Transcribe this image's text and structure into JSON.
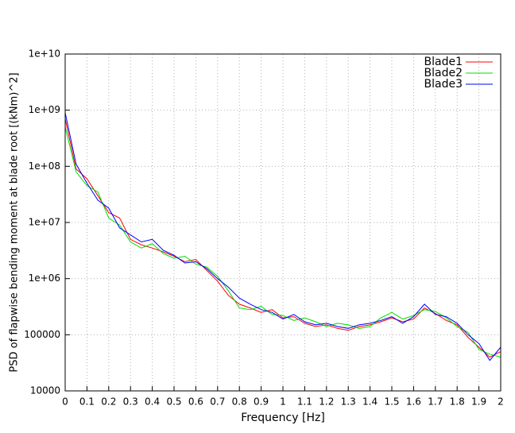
{
  "chart_data": {
    "type": "line",
    "xlabel": "Frequency [Hz]",
    "ylabel": "PSD of flapwise bending moment at blade root [(kNm)^2]",
    "x": [
      0,
      0.05,
      0.1,
      0.15,
      0.2,
      0.25,
      0.3,
      0.35,
      0.4,
      0.45,
      0.5,
      0.55,
      0.6,
      0.65,
      0.7,
      0.75,
      0.8,
      0.85,
      0.9,
      0.95,
      1,
      1.05,
      1.1,
      1.15,
      1.2,
      1.25,
      1.3,
      1.35,
      1.4,
      1.45,
      1.5,
      1.55,
      1.6,
      1.65,
      1.7,
      1.75,
      1.8,
      1.85,
      1.9,
      1.95,
      2
    ],
    "series": [
      {
        "name": "Blade1",
        "color": "#ff0000",
        "values": [
          700000000,
          90000000,
          60000000,
          30000000,
          15000000,
          12000000,
          5000000,
          4000000,
          3500000,
          3000000,
          2500000,
          2000000,
          2200000,
          1400000,
          900000,
          500000,
          350000,
          300000,
          250000,
          280000,
          200000,
          210000,
          160000,
          140000,
          150000,
          130000,
          120000,
          140000,
          150000,
          170000,
          200000,
          170000,
          190000,
          300000,
          240000,
          180000,
          150000,
          90000,
          60000,
          40000,
          50000
        ]
      },
      {
        "name": "Blade2",
        "color": "#00dd00",
        "values": [
          500000000,
          80000000,
          45000000,
          35000000,
          12000000,
          9000000,
          4500000,
          3500000,
          4200000,
          2800000,
          2300000,
          2500000,
          1800000,
          1600000,
          1100000,
          600000,
          300000,
          280000,
          320000,
          230000,
          220000,
          180000,
          200000,
          170000,
          140000,
          160000,
          150000,
          130000,
          140000,
          200000,
          250000,
          190000,
          220000,
          280000,
          260000,
          200000,
          140000,
          110000,
          55000,
          45000,
          40000
        ]
      },
      {
        "name": "Blade3",
        "color": "#0000ff",
        "values": [
          900000000,
          110000000,
          50000000,
          25000000,
          18000000,
          8000000,
          6000000,
          4500000,
          5000000,
          3200000,
          2600000,
          1900000,
          2000000,
          1500000,
          1000000,
          700000,
          450000,
          350000,
          280000,
          250000,
          190000,
          230000,
          170000,
          150000,
          160000,
          140000,
          130000,
          150000,
          160000,
          180000,
          210000,
          160000,
          210000,
          350000,
          230000,
          210000,
          160000,
          100000,
          70000,
          35000,
          60000
        ]
      }
    ],
    "xlim": [
      0,
      2
    ],
    "xticks": [
      0,
      0.1,
      0.2,
      0.3,
      0.4,
      0.5,
      0.6,
      0.7,
      0.8,
      0.9,
      1,
      1.1,
      1.2,
      1.3,
      1.4,
      1.5,
      1.6,
      1.7,
      1.8,
      1.9,
      2
    ],
    "ylim": [
      10000,
      10000000000
    ],
    "yticks": [
      10000,
      100000,
      {
        "value": 1000000,
        "label": "1e+06"
      },
      {
        "value": 10000000,
        "label": "1e+07"
      },
      {
        "value": 100000000,
        "label": "1e+08"
      },
      {
        "value": 1000000000,
        "label": "1e+09"
      },
      {
        "value": 10000000000,
        "label": "1e+10"
      }
    ],
    "log_y": true,
    "grid": true,
    "legend": "upper right"
  }
}
